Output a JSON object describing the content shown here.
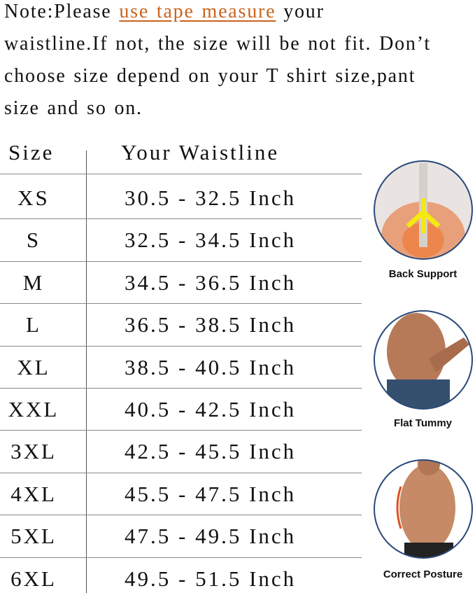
{
  "note": {
    "before": "Note:Please ",
    "link": "use tape measure",
    "after": " your waistline.If not, the size will be not fit. Don’t choose size depend on your T shirt size,pant size and so on."
  },
  "table": {
    "header": [
      "Size",
      "Your Waistline"
    ],
    "rows": [
      [
        "XS",
        "30.5 - 32.5 Inch"
      ],
      [
        "S",
        "32.5 - 34.5 Inch"
      ],
      [
        "M",
        "34.5 - 36.5 Inch"
      ],
      [
        "L",
        "36.5 - 38.5 Inch"
      ],
      [
        "XL",
        "38.5 - 40.5 Inch"
      ],
      [
        "XXL",
        "40.5 - 42.5 Inch"
      ],
      [
        "3XL",
        "42.5 - 45.5 Inch"
      ],
      [
        "4XL",
        "45.5 - 47.5 Inch"
      ],
      [
        "5XL",
        "47.5 - 49.5 Inch"
      ],
      [
        "6XL",
        "49.5 - 51.5 Inch"
      ]
    ]
  },
  "features": [
    {
      "label": "Back Support"
    },
    {
      "label": "Flat  Tummy"
    },
    {
      "label": "Correct Posture"
    }
  ]
}
